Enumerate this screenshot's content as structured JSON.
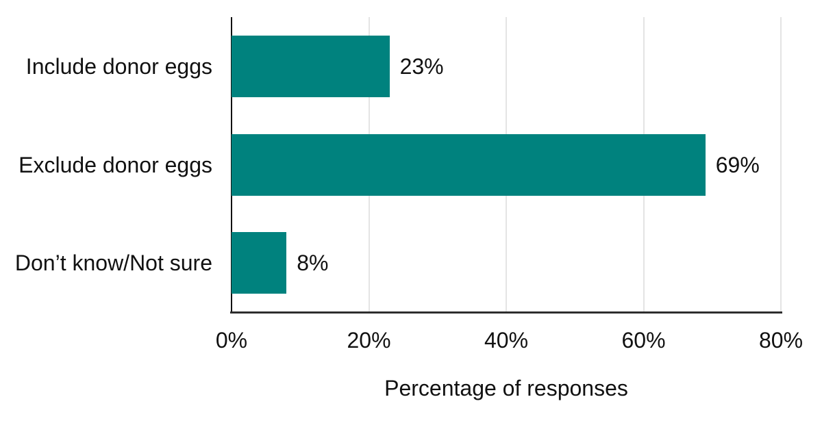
{
  "chart_data": {
    "type": "bar",
    "orientation": "horizontal",
    "title": "",
    "categories": [
      "Include donor eggs",
      "Exclude donor eggs",
      "Don’t know/Not sure"
    ],
    "values": [
      23,
      69,
      8
    ],
    "value_labels": [
      "23%",
      "69%",
      "8%"
    ],
    "xlabel": "Percentage of responses",
    "ylabel": "",
    "xlim": [
      0,
      80
    ],
    "x_ticks": [
      0,
      20,
      40,
      60,
      80
    ],
    "x_tick_labels": [
      "0%",
      "20%",
      "40%",
      "60%",
      "80%"
    ],
    "grid": "vertical-gridlines-at-ticks",
    "legend": "none"
  },
  "colors": {
    "bar": "#00827E",
    "gridline": "#e4e4e4",
    "y_axis_line": "#111111",
    "x_axis_line": "#2e2e2e",
    "text": "#111111",
    "background": "#ffffff"
  }
}
